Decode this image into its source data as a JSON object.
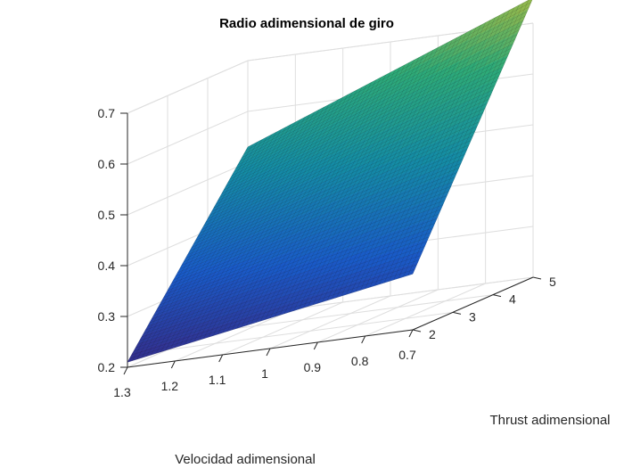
{
  "chart_data": {
    "type": "surface",
    "title": "Radio adimensional de giro",
    "xlabel": "Velocidad adimensional",
    "ylabel": "Thrust adimensional",
    "zlabel": "",
    "x_ticks": [
      "1.3",
      "1.2",
      "1.1",
      "1",
      "0.9",
      "0.8",
      "0.7"
    ],
    "x_tick_values": [
      1.3,
      1.2,
      1.1,
      1.0,
      0.9,
      0.8,
      0.7
    ],
    "y_ticks": [
      "2",
      "3",
      "4",
      "5"
    ],
    "y_tick_values": [
      2,
      3,
      4,
      5
    ],
    "z_ticks": [
      "0.2",
      "0.3",
      "0.4",
      "0.5",
      "0.6",
      "0.7"
    ],
    "z_tick_values": [
      0.2,
      0.3,
      0.4,
      0.5,
      0.6,
      0.7
    ],
    "xlim": [
      0.7,
      1.3
    ],
    "ylim": [
      2,
      5
    ],
    "zlim": [
      0.2,
      0.7
    ],
    "colormap": "parula",
    "grid": true,
    "corner_values": [
      {
        "x": 1.3,
        "y": 2,
        "z": 0.21
      },
      {
        "x": 0.7,
        "y": 2,
        "z": 0.31
      },
      {
        "x": 1.3,
        "y": 5,
        "z": 0.53
      },
      {
        "x": 0.7,
        "y": 5,
        "z": 0.75
      }
    ]
  }
}
